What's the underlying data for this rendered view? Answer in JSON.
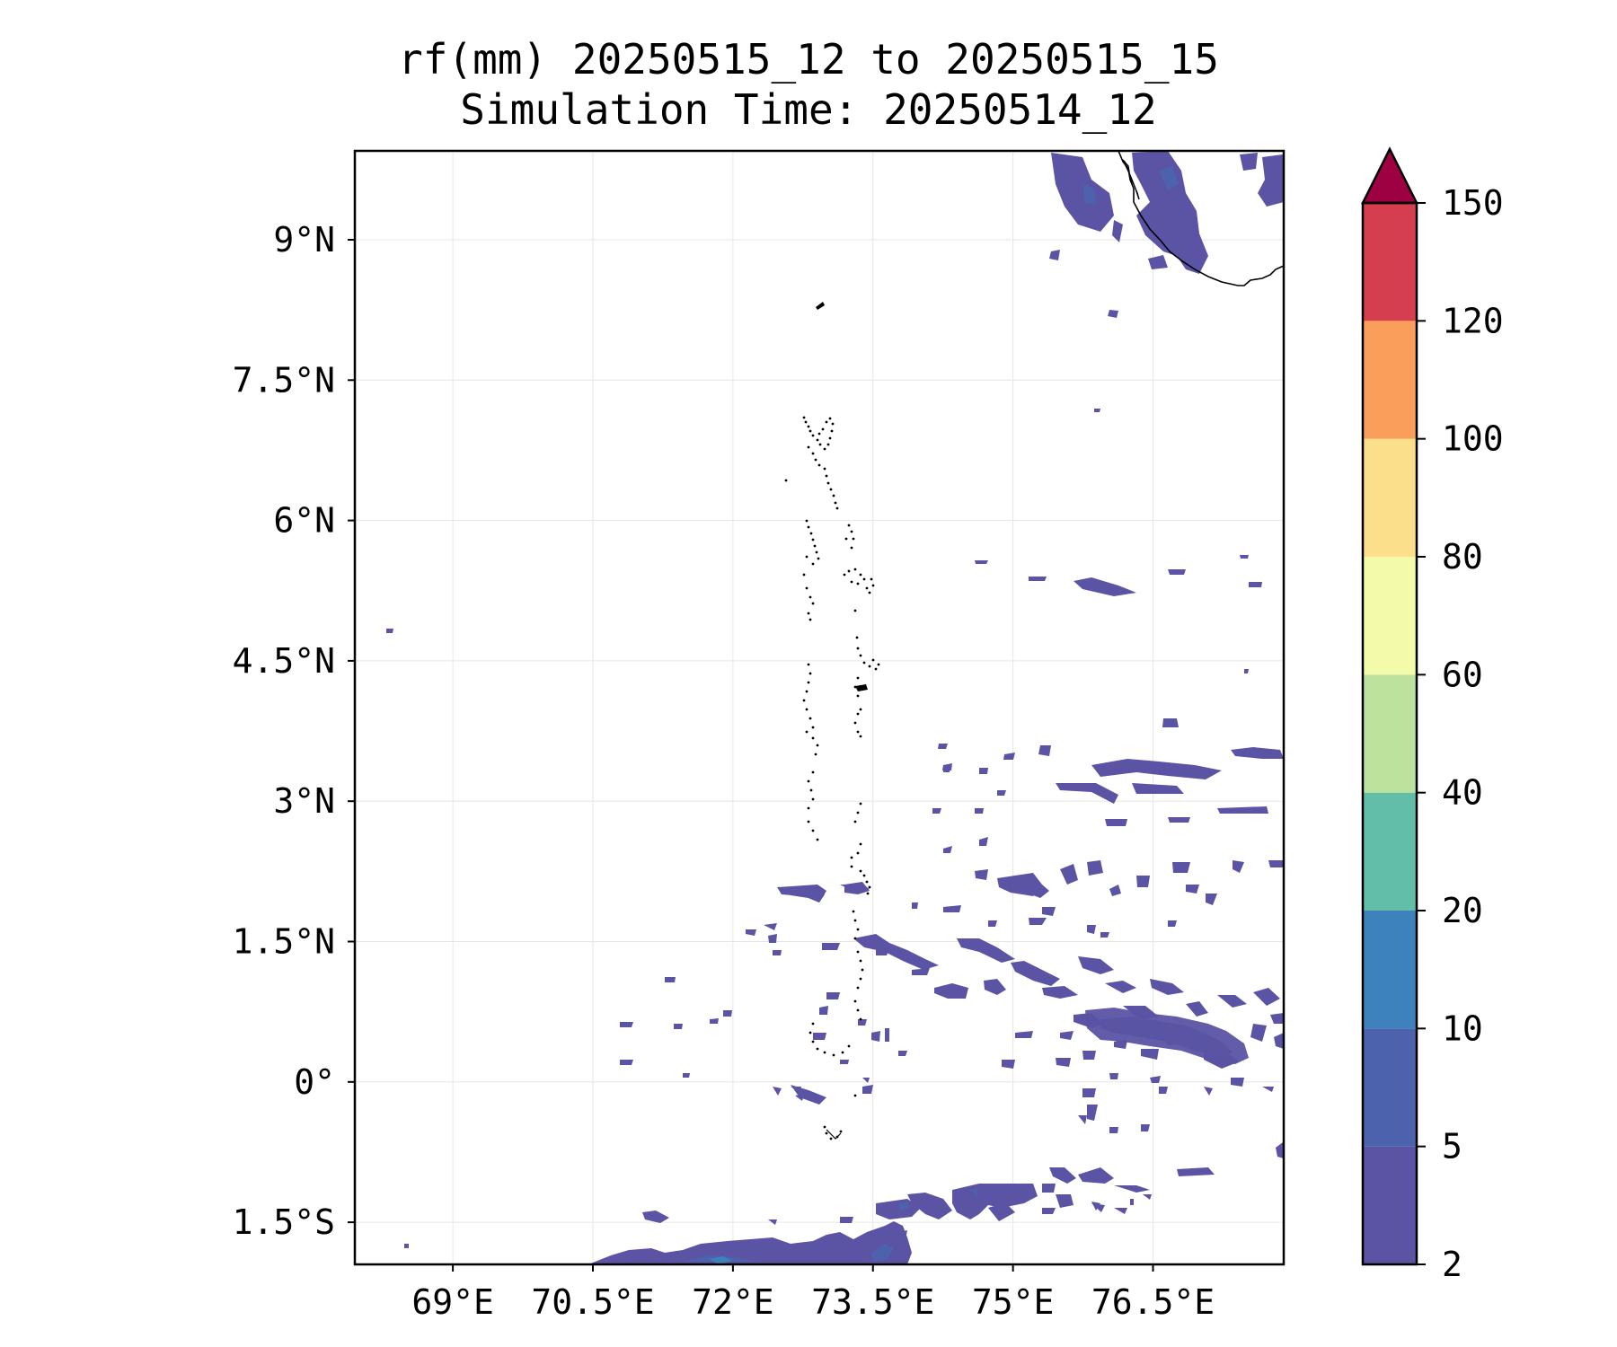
{
  "title": {
    "line1": "rf(mm) 20250515_12 to 20250515_15",
    "line2": "Simulation Time: 20250514_12"
  },
  "map": {
    "lon_range": [
      67.95,
      77.9
    ],
    "lat_range": [
      -1.95,
      9.95
    ],
    "grid": true,
    "coastline": "Maldives atolls, southern tip of India (Kerala coast)",
    "x_ticks": [
      {
        "value": 69,
        "label": "69°E"
      },
      {
        "value": 70.5,
        "label": "70.5°E"
      },
      {
        "value": 72,
        "label": "72°E"
      },
      {
        "value": 73.5,
        "label": "73.5°E"
      },
      {
        "value": 75,
        "label": "75°E"
      },
      {
        "value": 76.5,
        "label": "76.5°E"
      }
    ],
    "y_ticks": [
      {
        "value": 9,
        "label": "9°N"
      },
      {
        "value": 7.5,
        "label": "7.5°N"
      },
      {
        "value": 6,
        "label": "6°N"
      },
      {
        "value": 4.5,
        "label": "4.5°N"
      },
      {
        "value": 3,
        "label": "3°N"
      },
      {
        "value": 1.5,
        "label": "1.5°N"
      },
      {
        "value": 0,
        "label": "0°"
      },
      {
        "value": -1.5,
        "label": "1.5°S"
      }
    ],
    "rain_fill_color": "#5b53a4",
    "rain_mid_color": "#4d62ad"
  },
  "colorbar": {
    "levels": [
      "2",
      "5",
      "10",
      "20",
      "40",
      "60",
      "80",
      "100",
      "120",
      "150"
    ],
    "colors": [
      "#5b53a4",
      "#4d62ad",
      "#3d82bb",
      "#62bea9",
      "#bde29d",
      "#f3faa9",
      "#fbdf8a",
      "#f99e5b",
      "#d53e4f",
      "#9e0142"
    ],
    "extend": "max"
  }
}
